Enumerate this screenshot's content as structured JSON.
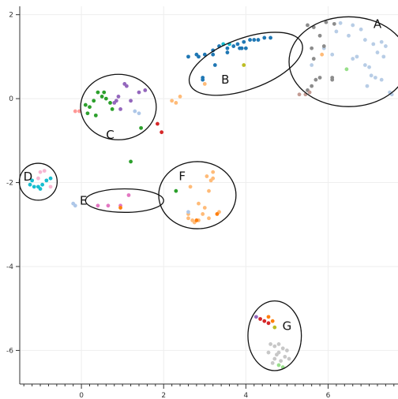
{
  "chart_data": {
    "type": "scatter",
    "title": "",
    "xlabel": "",
    "ylabel": "",
    "xlim": [
      -1.5,
      7.7
    ],
    "ylim": [
      -6.8,
      2.2
    ],
    "grid": true,
    "x_ticks": [
      0,
      2,
      4,
      6
    ],
    "x_tick_labels": [
      "0",
      "2",
      "4",
      "6"
    ],
    "x_minor_ticks": [
      -1.4,
      -1.2,
      -1.0,
      -0.8,
      -0.6,
      -0.4,
      -0.2,
      0.2,
      0.4,
      0.6,
      0.8,
      1.0,
      1.2,
      1.4,
      1.6,
      1.8,
      2.2,
      2.4,
      2.6,
      2.8,
      3.0,
      3.2,
      3.4,
      3.6,
      3.8,
      4.2,
      4.4,
      4.6,
      4.8,
      5.0,
      5.2,
      5.4,
      5.6,
      5.8,
      6.2,
      6.4,
      6.6,
      6.8,
      7.0,
      7.2,
      7.4,
      7.6
    ],
    "y_ticks": [
      2,
      0,
      -2,
      -4,
      -6
    ],
    "y_tick_labels": [
      "2",
      "0",
      "-2",
      "-4",
      "-6"
    ],
    "clusters": [
      {
        "label": "A",
        "cx": 6.5,
        "cy": 0.88,
        "rx": 1.45,
        "ry": 1.07,
        "label_x": 7.2,
        "label_y": 1.78
      },
      {
        "label": "B",
        "cx": 4.0,
        "cy": 0.83,
        "rx": 1.45,
        "ry": 0.61,
        "rotate": -20,
        "label_x": 3.5,
        "label_y": 0.45
      },
      {
        "label": "C",
        "cx": 0.9,
        "cy": -0.2,
        "rx": 0.92,
        "ry": 0.78,
        "label_x": 0.7,
        "label_y": -0.86
      },
      {
        "label": "D",
        "cx": -1.05,
        "cy": -1.98,
        "rx": 0.46,
        "ry": 0.44,
        "label_x": -1.3,
        "label_y": -1.86
      },
      {
        "label": "E",
        "cx": 1.05,
        "cy": -2.43,
        "rx": 0.95,
        "ry": 0.28,
        "label_x": 0.05,
        "label_y": -2.43
      },
      {
        "label": "F",
        "cx": 2.82,
        "cy": -2.3,
        "rx": 0.94,
        "ry": 0.8,
        "label_x": 2.45,
        "label_y": -1.85
      },
      {
        "label": "G",
        "cx": 4.7,
        "cy": -5.65,
        "rx": 0.65,
        "ry": 0.83,
        "label_x": 5.0,
        "label_y": -5.42
      }
    ],
    "series": [
      {
        "color": "#b8cde6",
        "points": [
          [
            6.6,
            1.75
          ],
          [
            6.8,
            1.65
          ],
          [
            6.3,
            1.8
          ],
          [
            6.2,
            1.6
          ],
          [
            6.9,
            1.4
          ],
          [
            7.1,
            1.3
          ],
          [
            7.3,
            1.35
          ],
          [
            7.4,
            1.25
          ],
          [
            7.2,
            1.1
          ],
          [
            7.35,
            1.0
          ],
          [
            6.7,
            1.0
          ],
          [
            6.6,
            0.95
          ],
          [
            6.9,
            0.8
          ],
          [
            7.0,
            0.75
          ],
          [
            7.05,
            0.55
          ],
          [
            7.15,
            0.5
          ],
          [
            7.3,
            0.45
          ],
          [
            6.95,
            0.3
          ],
          [
            5.9,
            1.2
          ],
          [
            6.1,
            1.05
          ],
          [
            5.6,
            0.8
          ],
          [
            7.5,
            0.15
          ],
          [
            7.55,
            0.1
          ],
          [
            6.5,
            1.5
          ]
        ]
      },
      {
        "color": "#8c8c8c",
        "points": [
          [
            5.5,
            1.75
          ],
          [
            5.65,
            1.7
          ],
          [
            5.95,
            1.82
          ],
          [
            6.15,
            1.78
          ],
          [
            5.8,
            1.5
          ],
          [
            5.9,
            1.25
          ],
          [
            5.6,
            1.2
          ],
          [
            5.65,
            0.95
          ],
          [
            5.8,
            0.5
          ],
          [
            5.7,
            0.45
          ],
          [
            5.6,
            0.3
          ],
          [
            5.5,
            0.2
          ],
          [
            6.1,
            0.5
          ],
          [
            6.1,
            0.45
          ]
        ]
      },
      {
        "color": "#c49c94",
        "points": [
          [
            5.45,
            0.1
          ],
          [
            5.55,
            0.15
          ],
          [
            5.3,
            0.1
          ]
        ]
      },
      {
        "color": "#98df8a",
        "points": [
          [
            6.45,
            0.7
          ]
        ]
      },
      {
        "color": "#ffbb78",
        "points": [
          [
            5.85,
            1.05
          ]
        ]
      },
      {
        "color": "#1f77b4",
        "points": [
          [
            2.6,
            1.0
          ],
          [
            2.85,
            1.0
          ],
          [
            3.0,
            1.05
          ],
          [
            3.2,
            1.15
          ],
          [
            3.35,
            1.25
          ],
          [
            3.55,
            1.2
          ],
          [
            3.7,
            1.25
          ],
          [
            3.9,
            1.2
          ],
          [
            3.95,
            1.35
          ],
          [
            4.1,
            1.4
          ],
          [
            4.2,
            1.4
          ],
          [
            4.3,
            1.4
          ],
          [
            4.45,
            1.45
          ],
          [
            4.6,
            1.45
          ],
          [
            3.8,
            1.3
          ],
          [
            3.2,
            1.05
          ],
          [
            2.95,
            0.5
          ],
          [
            2.95,
            0.45
          ],
          [
            3.25,
            0.8
          ],
          [
            3.55,
            1.1
          ],
          [
            3.85,
            1.2
          ],
          [
            4.0,
            1.2
          ],
          [
            2.8,
            1.05
          ]
        ]
      },
      {
        "color": "#17becf",
        "points": [
          [
            3.45,
            1.3
          ],
          [
            3.6,
            1.3
          ]
        ]
      },
      {
        "color": "#bcbd22",
        "points": [
          [
            3.95,
            0.8
          ]
        ]
      },
      {
        "color": "#ffbb78",
        "points": [
          [
            3.0,
            0.35
          ],
          [
            2.2,
            -0.05
          ],
          [
            2.3,
            -0.1
          ],
          [
            2.4,
            0.05
          ]
        ]
      },
      {
        "color": "#2ca02c",
        "points": [
          [
            0.1,
            -0.15
          ],
          [
            0.2,
            -0.2
          ],
          [
            0.3,
            -0.05
          ],
          [
            0.4,
            0.15
          ],
          [
            0.5,
            0.05
          ],
          [
            0.55,
            0.15
          ],
          [
            0.6,
            0.0
          ],
          [
            0.7,
            -0.1
          ],
          [
            0.75,
            -0.25
          ],
          [
            0.15,
            -0.35
          ],
          [
            0.35,
            -0.4
          ],
          [
            1.45,
            -0.7
          ],
          [
            1.2,
            -1.5
          ]
        ]
      },
      {
        "color": "#9467bd",
        "points": [
          [
            0.85,
            -0.05
          ],
          [
            0.9,
            0.05
          ],
          [
            1.05,
            0.35
          ],
          [
            1.1,
            0.3
          ],
          [
            1.2,
            -0.05
          ],
          [
            1.4,
            0.15
          ],
          [
            1.55,
            0.2
          ],
          [
            0.8,
            -0.1
          ],
          [
            0.95,
            -0.25
          ]
        ]
      },
      {
        "color": "#aec7e8",
        "points": [
          [
            1.3,
            -0.3
          ],
          [
            1.4,
            -0.35
          ]
        ]
      },
      {
        "color": "#ff9896",
        "points": [
          [
            -0.15,
            -0.3
          ],
          [
            -0.05,
            -0.3
          ]
        ]
      },
      {
        "color": "#d62728",
        "points": [
          [
            1.85,
            -0.6
          ],
          [
            1.95,
            -0.8
          ]
        ]
      },
      {
        "color": "#17becf",
        "points": [
          [
            -1.25,
            -2.05
          ],
          [
            -1.15,
            -2.1
          ],
          [
            -1.05,
            -2.1
          ],
          [
            -1.0,
            -2.15
          ],
          [
            -0.95,
            -2.05
          ],
          [
            -0.85,
            -1.95
          ],
          [
            -0.75,
            -1.9
          ],
          [
            -1.2,
            -1.95
          ]
        ]
      },
      {
        "color": "#f7b6d2",
        "points": [
          [
            -1.0,
            -1.75
          ],
          [
            -0.9,
            -1.72
          ],
          [
            -0.75,
            -2.1
          ],
          [
            -1.05,
            -1.9
          ]
        ]
      },
      {
        "color": "#aec7e8",
        "points": [
          [
            -0.2,
            -2.5
          ],
          [
            -0.15,
            -2.55
          ]
        ]
      },
      {
        "color": "#e377c2",
        "points": [
          [
            0.4,
            -2.55
          ],
          [
            0.65,
            -2.55
          ],
          [
            0.95,
            -2.55
          ],
          [
            1.15,
            -2.3
          ]
        ]
      },
      {
        "color": "#ff7f0e",
        "points": [
          [
            0.95,
            -2.6
          ]
        ]
      },
      {
        "color": "#ffbb78",
        "points": [
          [
            2.65,
            -2.1
          ],
          [
            2.85,
            -2.5
          ],
          [
            3.0,
            -2.6
          ],
          [
            3.1,
            -2.2
          ],
          [
            3.15,
            -1.95
          ],
          [
            3.2,
            -1.9
          ],
          [
            3.2,
            -1.75
          ],
          [
            3.05,
            -1.85
          ],
          [
            2.6,
            -2.75
          ],
          [
            2.7,
            -2.9
          ],
          [
            2.75,
            -2.95
          ],
          [
            2.85,
            -2.9
          ],
          [
            2.95,
            -2.75
          ],
          [
            3.1,
            -2.85
          ],
          [
            3.35,
            -2.7
          ],
          [
            2.6,
            -2.85
          ]
        ]
      },
      {
        "color": "#ff7f0e",
        "points": [
          [
            2.8,
            -2.9
          ],
          [
            3.3,
            -2.75
          ]
        ]
      },
      {
        "color": "#aec7e8",
        "points": [
          [
            2.6,
            -2.7
          ]
        ]
      },
      {
        "color": "#2ca02c",
        "points": [
          [
            2.3,
            -2.2
          ]
        ]
      },
      {
        "color": "#c7c7c7",
        "points": [
          [
            4.6,
            -5.85
          ],
          [
            4.7,
            -5.9
          ],
          [
            4.8,
            -5.85
          ],
          [
            4.9,
            -5.95
          ],
          [
            5.0,
            -6.0
          ],
          [
            4.55,
            -6.05
          ],
          [
            4.75,
            -6.1
          ],
          [
            4.95,
            -6.15
          ],
          [
            5.05,
            -6.2
          ],
          [
            4.85,
            -6.25
          ],
          [
            4.65,
            -6.3
          ],
          [
            4.8,
            -6.05
          ],
          [
            4.7,
            -6.2
          ]
        ]
      },
      {
        "color": "#98df8a",
        "points": [
          [
            4.8,
            -6.35
          ],
          [
            4.9,
            -6.4
          ]
        ]
      },
      {
        "color": "#d62728",
        "points": [
          [
            4.35,
            -5.25
          ],
          [
            4.45,
            -5.3
          ],
          [
            4.55,
            -5.35
          ]
        ]
      },
      {
        "color": "#ff7f0e",
        "points": [
          [
            4.55,
            -5.2
          ],
          [
            4.65,
            -5.3
          ]
        ]
      },
      {
        "color": "#9467bd",
        "points": [
          [
            4.25,
            -5.2
          ]
        ]
      },
      {
        "color": "#bcbd22",
        "points": [
          [
            4.7,
            -5.45
          ]
        ]
      }
    ]
  }
}
